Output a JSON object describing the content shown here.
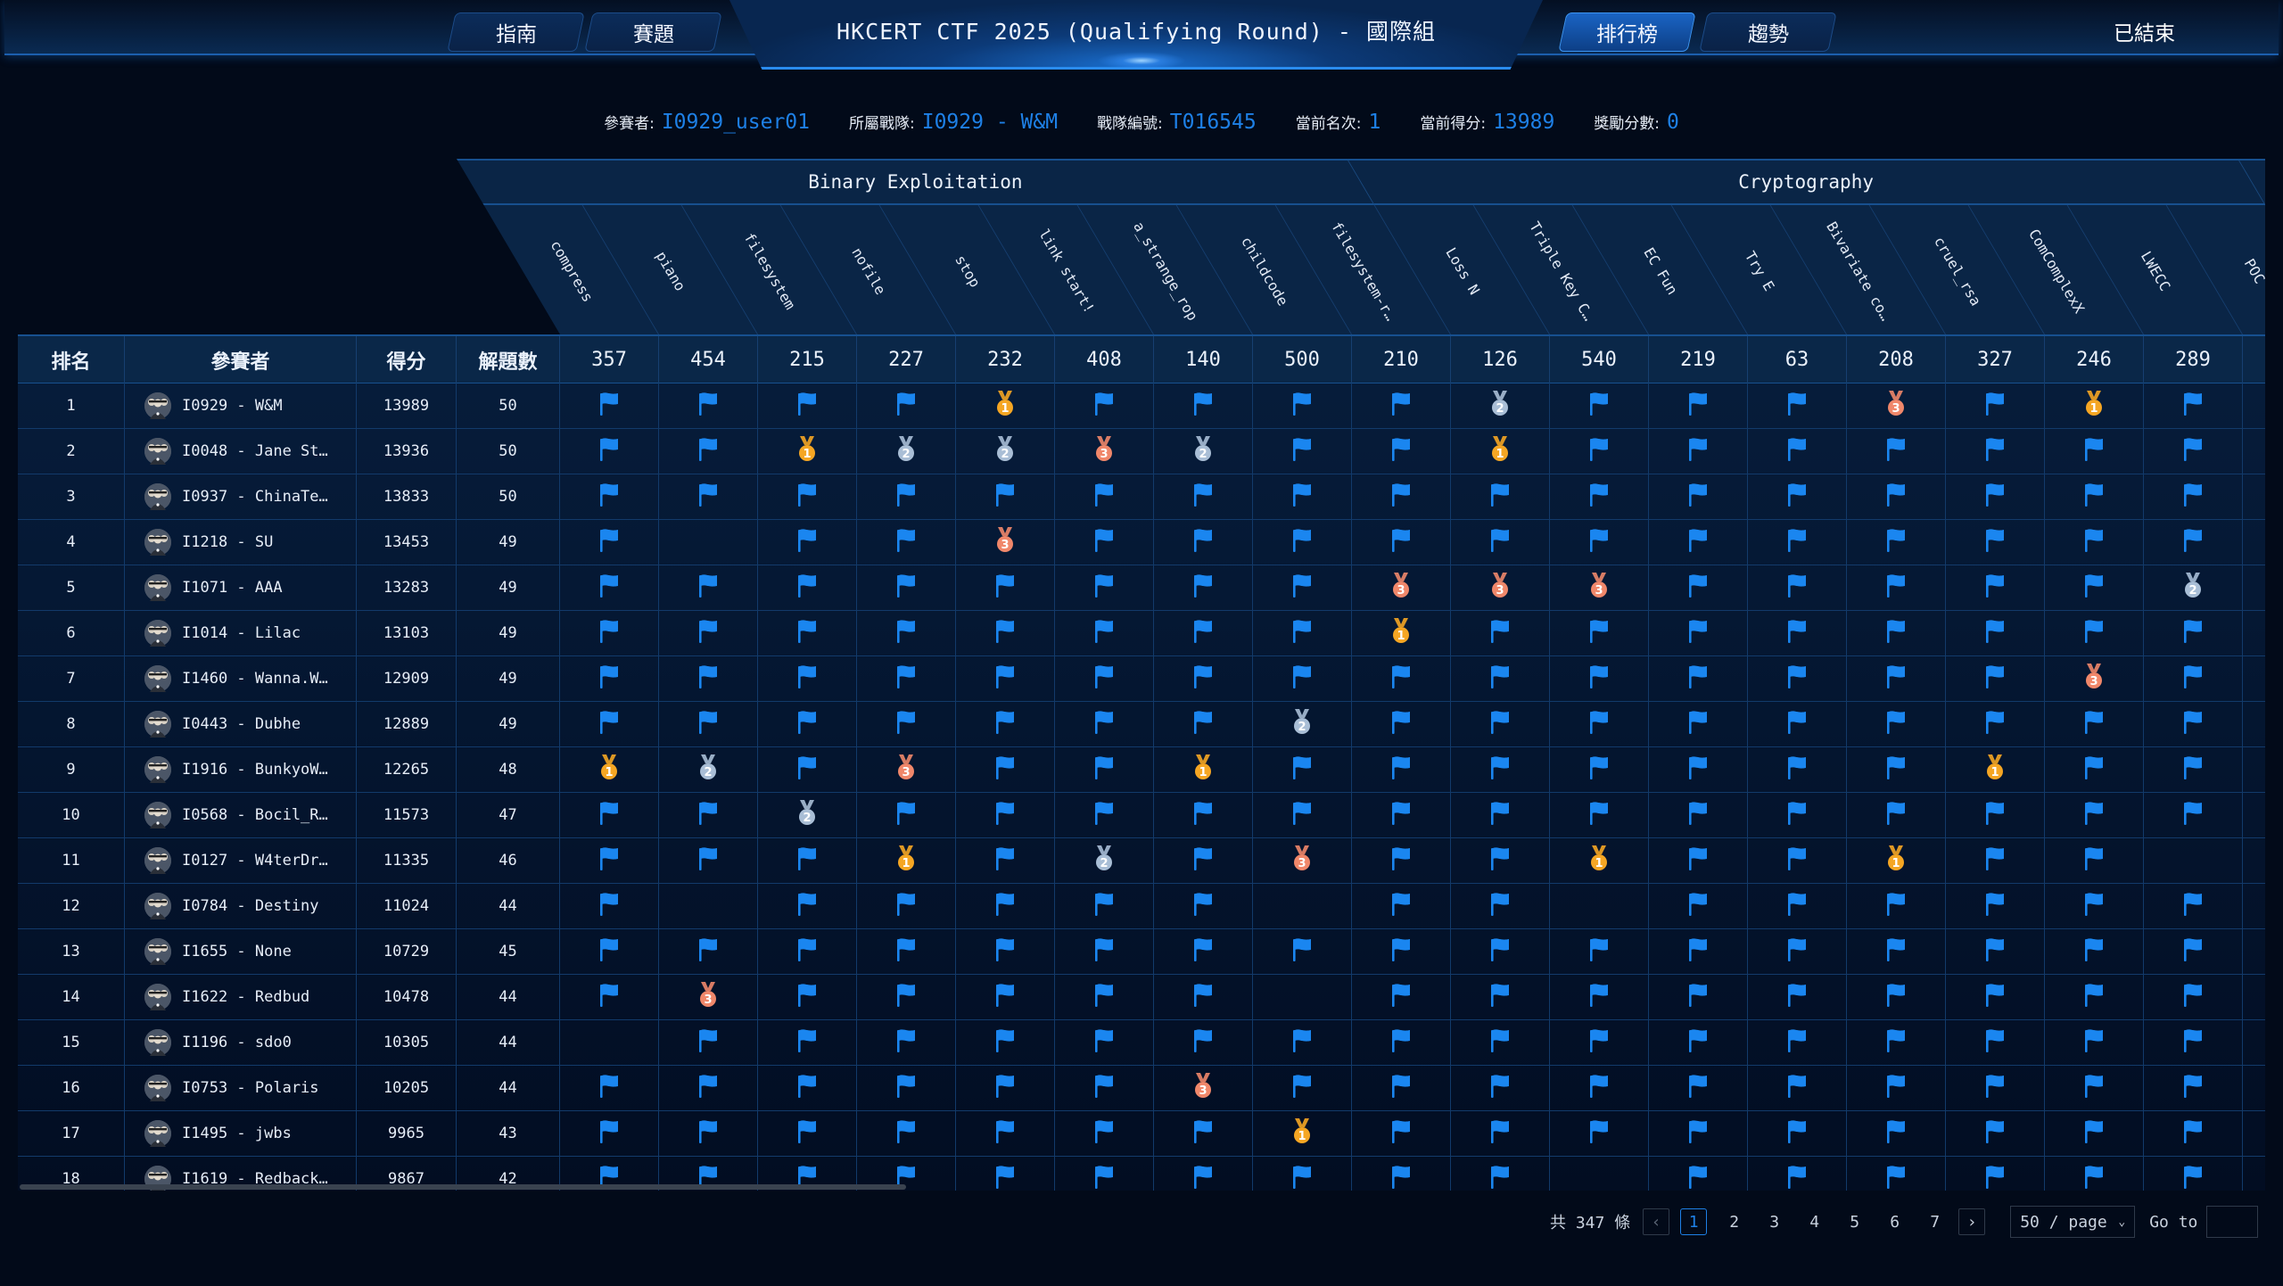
{
  "nav": {
    "guide": "指南",
    "challenges": "賽題",
    "title": "HKCERT CTF 2025 (Qualifying Round) - 國際組",
    "leaderboard": "排行榜",
    "trends": "趨勢",
    "status": "已結束"
  },
  "info": [
    {
      "label": "參賽者:",
      "value": "I0929_user01"
    },
    {
      "label": "所屬戰隊:",
      "value": "I0929 - W&M"
    },
    {
      "label": "戰隊編號:",
      "value": "T016545"
    },
    {
      "label": "當前名次:",
      "value": "1"
    },
    {
      "label": "當前得分:",
      "value": "13989"
    },
    {
      "label": "獎勵分數:",
      "value": "0"
    }
  ],
  "categories": [
    {
      "name": "Binary Exploitation",
      "span": 9
    },
    {
      "name": "Cryptography",
      "span": 9
    }
  ],
  "table_headers": {
    "rank": "排名",
    "team": "參賽者",
    "score": "得分",
    "solved": "解題數"
  },
  "challenges": [
    {
      "name": "compress",
      "points": "357"
    },
    {
      "name": "piano",
      "points": "454"
    },
    {
      "name": "filesystem",
      "points": "215"
    },
    {
      "name": "nofile",
      "points": "227"
    },
    {
      "name": "stop",
      "points": "232"
    },
    {
      "name": "link start!",
      "points": "408"
    },
    {
      "name": "a_strange_rop",
      "points": "140"
    },
    {
      "name": "childcode",
      "points": "500"
    },
    {
      "name": "filesystem-r…",
      "points": "210"
    },
    {
      "name": "Loss N",
      "points": "126"
    },
    {
      "name": "Triple Key C…",
      "points": "540"
    },
    {
      "name": "EC Fun",
      "points": "219"
    },
    {
      "name": "Try E",
      "points": "63"
    },
    {
      "name": "Bivariate co…",
      "points": "208"
    },
    {
      "name": "cruel_rsa",
      "points": "327"
    },
    {
      "name": "ComComplexX",
      "points": "246"
    },
    {
      "name": "LWECC",
      "points": "289"
    },
    {
      "name": "POC",
      "points": ""
    }
  ],
  "legend": {
    "F": "flag-icon",
    "1": "gold-medal-icon",
    "2": "silver-medal-icon",
    "3": "bronze-medal-icon"
  },
  "colors": {
    "flag": "#1a86f0",
    "gold": "#f5a623",
    "silver": "#a9bed6",
    "bronze": "#f0876a",
    "accent": "#1e80e6"
  },
  "rows": [
    {
      "rank": "1",
      "team": "I0929 - W&M",
      "score": "13989",
      "solved": "50",
      "cells": [
        "F",
        "F",
        "F",
        "F",
        "1",
        "F",
        "F",
        "F",
        "F",
        "2",
        "F",
        "F",
        "F",
        "3",
        "F",
        "1",
        "F"
      ]
    },
    {
      "rank": "2",
      "team": "I0048 - Jane St…",
      "score": "13936",
      "solved": "50",
      "cells": [
        "F",
        "F",
        "1",
        "2",
        "2",
        "3",
        "2",
        "F",
        "F",
        "1",
        "F",
        "F",
        "F",
        "F",
        "F",
        "F",
        "F"
      ]
    },
    {
      "rank": "3",
      "team": "I0937 - ChinaTe…",
      "score": "13833",
      "solved": "50",
      "cells": [
        "F",
        "F",
        "F",
        "F",
        "F",
        "F",
        "F",
        "F",
        "F",
        "F",
        "F",
        "F",
        "F",
        "F",
        "F",
        "F",
        "F"
      ]
    },
    {
      "rank": "4",
      "team": "I1218 - SU",
      "score": "13453",
      "solved": "49",
      "cells": [
        "F",
        "",
        "F",
        "F",
        "3",
        "F",
        "F",
        "F",
        "F",
        "F",
        "F",
        "F",
        "F",
        "F",
        "F",
        "F",
        "F"
      ]
    },
    {
      "rank": "5",
      "team": "I1071 - AAA",
      "score": "13283",
      "solved": "49",
      "cells": [
        "F",
        "F",
        "F",
        "F",
        "F",
        "F",
        "F",
        "F",
        "3",
        "3",
        "3",
        "F",
        "F",
        "F",
        "F",
        "F",
        "2"
      ]
    },
    {
      "rank": "6",
      "team": "I1014 - Lilac",
      "score": "13103",
      "solved": "49",
      "cells": [
        "F",
        "F",
        "F",
        "F",
        "F",
        "F",
        "F",
        "F",
        "1",
        "F",
        "F",
        "F",
        "F",
        "F",
        "F",
        "F",
        "F"
      ]
    },
    {
      "rank": "7",
      "team": "I1460 - Wanna.W…",
      "score": "12909",
      "solved": "49",
      "cells": [
        "F",
        "F",
        "F",
        "F",
        "F",
        "F",
        "F",
        "F",
        "F",
        "F",
        "F",
        "F",
        "F",
        "F",
        "F",
        "3",
        "F"
      ]
    },
    {
      "rank": "8",
      "team": "I0443 - Dubhe",
      "score": "12889",
      "solved": "49",
      "cells": [
        "F",
        "F",
        "F",
        "F",
        "F",
        "F",
        "F",
        "2",
        "F",
        "F",
        "F",
        "F",
        "F",
        "F",
        "F",
        "F",
        "F"
      ]
    },
    {
      "rank": "9",
      "team": "I1916 - BunkyoW…",
      "score": "12265",
      "solved": "48",
      "cells": [
        "1",
        "2",
        "F",
        "3",
        "F",
        "F",
        "1",
        "F",
        "F",
        "F",
        "F",
        "F",
        "F",
        "F",
        "1",
        "F",
        "F"
      ]
    },
    {
      "rank": "10",
      "team": "I0568 - Bocil_R…",
      "score": "11573",
      "solved": "47",
      "cells": [
        "F",
        "F",
        "2",
        "F",
        "F",
        "F",
        "F",
        "F",
        "F",
        "F",
        "F",
        "F",
        "F",
        "F",
        "F",
        "F",
        "F"
      ]
    },
    {
      "rank": "11",
      "team": "I0127 - W4terDr…",
      "score": "11335",
      "solved": "46",
      "cells": [
        "F",
        "F",
        "F",
        "1",
        "F",
        "2",
        "F",
        "3",
        "F",
        "F",
        "1",
        "F",
        "F",
        "1",
        "F",
        "F",
        ""
      ]
    },
    {
      "rank": "12",
      "team": "I0784 - Destiny",
      "score": "11024",
      "solved": "44",
      "cells": [
        "F",
        "",
        "F",
        "F",
        "F",
        "F",
        "F",
        "",
        "F",
        "F",
        "",
        "F",
        "F",
        "F",
        "F",
        "F",
        "F"
      ]
    },
    {
      "rank": "13",
      "team": "I1655 - None",
      "score": "10729",
      "solved": "45",
      "cells": [
        "F",
        "F",
        "F",
        "F",
        "F",
        "F",
        "F",
        "F",
        "F",
        "F",
        "F",
        "F",
        "F",
        "F",
        "F",
        "F",
        "F"
      ]
    },
    {
      "rank": "14",
      "team": "I1622 - Redbud",
      "score": "10478",
      "solved": "44",
      "cells": [
        "F",
        "3",
        "F",
        "F",
        "F",
        "F",
        "F",
        "",
        "F",
        "F",
        "F",
        "F",
        "F",
        "F",
        "F",
        "F",
        "F"
      ]
    },
    {
      "rank": "15",
      "team": "I1196 - sdo0",
      "score": "10305",
      "solved": "44",
      "cells": [
        "",
        "F",
        "F",
        "F",
        "F",
        "F",
        "F",
        "F",
        "F",
        "F",
        "F",
        "F",
        "F",
        "F",
        "F",
        "F",
        "F"
      ]
    },
    {
      "rank": "16",
      "team": "I0753 - Polaris",
      "score": "10205",
      "solved": "44",
      "cells": [
        "F",
        "F",
        "F",
        "F",
        "F",
        "F",
        "3",
        "F",
        "F",
        "F",
        "F",
        "F",
        "F",
        "F",
        "F",
        "F",
        "F"
      ]
    },
    {
      "rank": "17",
      "team": "I1495 - jwbs",
      "score": "9965",
      "solved": "43",
      "cells": [
        "F",
        "F",
        "F",
        "F",
        "F",
        "F",
        "F",
        "1",
        "F",
        "F",
        "F",
        "F",
        "F",
        "F",
        "F",
        "F",
        "F"
      ]
    },
    {
      "rank": "18",
      "team": "I1619 - Redback…",
      "score": "9867",
      "solved": "42",
      "cells": [
        "F",
        "F",
        "F",
        "F",
        "F",
        "F",
        "F",
        "F",
        "F",
        "F",
        "",
        "F",
        "F",
        "F",
        "F",
        "F",
        "F"
      ]
    }
  ],
  "pagination": {
    "total": "共 347 條",
    "prev": "‹",
    "pages": [
      "1",
      "2",
      "3",
      "4",
      "5",
      "6",
      "7"
    ],
    "current": "1",
    "next": "›",
    "page_size": "50 / page",
    "goto_label": "Go to",
    "goto_value": ""
  }
}
